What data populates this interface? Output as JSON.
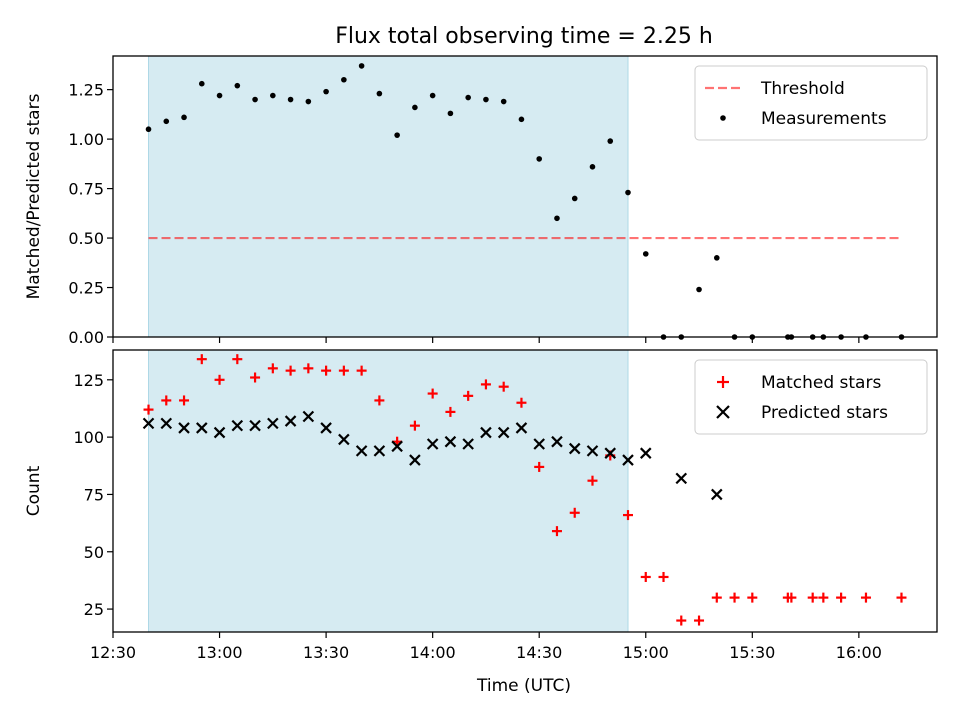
{
  "chart_data": [
    {
      "type": "scatter",
      "title": "Flux total observing time = 2.25 h",
      "ylabel": "Matched/Predicted stars",
      "xlabel": "",
      "ylim": [
        0.0,
        1.42
      ],
      "xlim": [
        "12:30",
        "16:22"
      ],
      "yticks": [
        0.0,
        0.25,
        0.5,
        0.75,
        1.0,
        1.25
      ],
      "ytick_labels": [
        "0.00",
        "0.25",
        "0.50",
        "0.75",
        "1.00",
        "1.25"
      ],
      "observing_window": {
        "start": "12:40",
        "end": "14:55",
        "color": "#add8e6"
      },
      "threshold": {
        "name": "Threshold",
        "value": 0.5,
        "x_range": [
          "12:40",
          "16:12"
        ],
        "color": "#ff0000"
      },
      "series": [
        {
          "name": "Measurements",
          "color": "#000000",
          "x": [
            "12:40",
            "12:45",
            "12:50",
            "12:55",
            "13:00",
            "13:05",
            "13:10",
            "13:15",
            "13:20",
            "13:25",
            "13:30",
            "13:35",
            "13:40",
            "13:45",
            "13:50",
            "13:55",
            "14:00",
            "14:05",
            "14:10",
            "14:15",
            "14:20",
            "14:25",
            "14:30",
            "14:35",
            "14:40",
            "14:45",
            "14:50",
            "14:55",
            "15:00",
            "15:05",
            "15:10",
            "15:15",
            "15:20",
            "15:25",
            "15:30",
            "15:40",
            "15:41",
            "15:47",
            "15:50",
            "15:55",
            "16:02",
            "16:12"
          ],
          "y": [
            1.05,
            1.09,
            1.11,
            1.28,
            1.22,
            1.27,
            1.2,
            1.22,
            1.2,
            1.19,
            1.24,
            1.3,
            1.37,
            1.23,
            1.02,
            1.16,
            1.22,
            1.13,
            1.21,
            1.2,
            1.19,
            1.1,
            0.9,
            0.6,
            0.7,
            0.86,
            0.99,
            0.73,
            0.42,
            0.0,
            0.0,
            0.24,
            0.4,
            0.0,
            0.0,
            0.0,
            0.0,
            0.0,
            0.0,
            0.0,
            0.0,
            0.0
          ]
        }
      ],
      "legend": {
        "position": "top-right"
      }
    },
    {
      "type": "scatter",
      "title": "",
      "ylabel": "Count",
      "xlabel": "Time (UTC)",
      "ylim": [
        15,
        138
      ],
      "xlim": [
        "12:30",
        "16:22"
      ],
      "yticks": [
        25,
        50,
        75,
        100,
        125
      ],
      "ytick_labels": [
        "25",
        "50",
        "75",
        "100",
        "125"
      ],
      "xticks": [
        "12:30",
        "13:00",
        "13:30",
        "14:00",
        "14:30",
        "15:00",
        "15:30",
        "16:00"
      ],
      "observing_window": {
        "start": "12:40",
        "end": "14:55",
        "color": "#add8e6"
      },
      "series": [
        {
          "name": "Matched stars",
          "marker": "plus",
          "color": "#ff0000",
          "x": [
            "12:40",
            "12:45",
            "12:50",
            "12:55",
            "13:00",
            "13:05",
            "13:10",
            "13:15",
            "13:20",
            "13:25",
            "13:30",
            "13:35",
            "13:40",
            "13:45",
            "13:50",
            "13:55",
            "14:00",
            "14:05",
            "14:10",
            "14:15",
            "14:20",
            "14:25",
            "14:30",
            "14:35",
            "14:40",
            "14:45",
            "14:50",
            "14:55",
            "15:00",
            "15:05",
            "15:10",
            "15:15",
            "15:20",
            "15:25",
            "15:30",
            "15:40",
            "15:41",
            "15:47",
            "15:50",
            "15:55",
            "16:02",
            "16:12"
          ],
          "y": [
            112,
            116,
            116,
            134,
            125,
            134,
            126,
            130,
            129,
            130,
            129,
            129,
            129,
            116,
            98,
            105,
            119,
            111,
            118,
            123,
            122,
            115,
            87,
            59,
            67,
            81,
            92,
            66,
            39,
            39,
            20,
            20,
            30,
            30,
            30,
            30,
            30,
            30,
            30,
            30,
            30,
            30
          ]
        },
        {
          "name": "Predicted stars",
          "marker": "x",
          "color": "#000000",
          "x": [
            "12:40",
            "12:45",
            "12:50",
            "12:55",
            "13:00",
            "13:05",
            "13:10",
            "13:15",
            "13:20",
            "13:25",
            "13:30",
            "13:35",
            "13:40",
            "13:45",
            "13:50",
            "13:55",
            "14:00",
            "14:05",
            "14:10",
            "14:15",
            "14:20",
            "14:25",
            "14:30",
            "14:35",
            "14:40",
            "14:45",
            "14:50",
            "14:55",
            "15:00",
            "15:10",
            "15:20"
          ],
          "y": [
            106,
            106,
            104,
            104,
            102,
            105,
            105,
            106,
            107,
            109,
            104,
            99,
            94,
            94,
            96,
            90,
            97,
            98,
            97,
            102,
            102,
            104,
            97,
            98,
            95,
            94,
            93,
            90,
            93,
            82,
            75
          ]
        }
      ],
      "legend": {
        "position": "top-right"
      }
    }
  ]
}
